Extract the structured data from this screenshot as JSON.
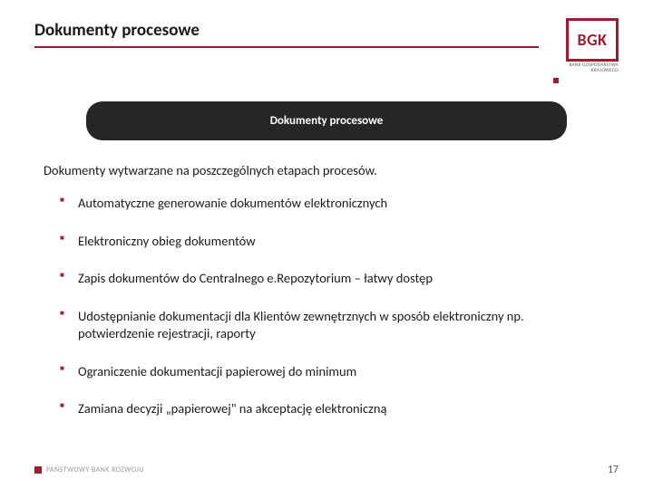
{
  "colors": {
    "accent": "#9e1b32",
    "bannerBg": "#262626",
    "text": "#1a1a1a",
    "logoSub": "#555555"
  },
  "header": {
    "title": "Dokumenty procesowe"
  },
  "logo": {
    "text": "BGK",
    "subtitle": "BANK GOSPODARSTWA\nKRAJOWEGO"
  },
  "banner": {
    "label": "Dokumenty procesowe"
  },
  "subtitle": "Dokumenty wytwarzane na poszczególnych etapach procesów.",
  "bullets": [
    "Automatyczne generowanie dokumentów elektronicznych",
    "Elektroniczny obieg dokumentów",
    "Zapis dokumentów do Centralnego e.Repozytorium – łatwy dostęp",
    "Udostępnianie dokumentacji dla Klientów zewnętrznych w sposób elektroniczny np. potwierdzenie rejestracji, raporty",
    "Ograniczenie dokumentacji papierowej do minimum",
    "Zamiana decyzji „papierowej\" na akceptację  elektroniczną"
  ],
  "footer": {
    "text": "PAŃSTWOWY BANK ROZWOJU",
    "page": "17"
  }
}
